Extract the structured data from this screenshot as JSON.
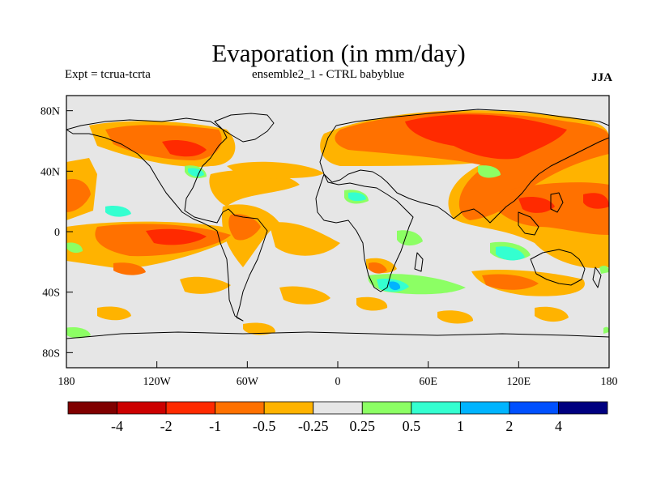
{
  "title": "Evaporation (in mm/day)",
  "left_subtitle": "Expt = tcrua-tcrta",
  "center_subtitle": "ensemble2_1 - CTRL babyblue",
  "right_subtitle": "JJA",
  "map": {
    "lon_range": [
      -180,
      180
    ],
    "lat_range": [
      -90,
      90
    ],
    "x_ticks": [
      {
        "value": -180,
        "label": "180"
      },
      {
        "value": -120,
        "label": "120W"
      },
      {
        "value": -60,
        "label": "60W"
      },
      {
        "value": 0,
        "label": "0"
      },
      {
        "value": 60,
        "label": "60E"
      },
      {
        "value": 120,
        "label": "120E"
      },
      {
        "value": 180,
        "label": "180"
      }
    ],
    "y_ticks": [
      {
        "value": 80,
        "label": "80N"
      },
      {
        "value": 40,
        "label": "40N"
      },
      {
        "value": 0,
        "label": "0"
      },
      {
        "value": -40,
        "label": "40S"
      },
      {
        "value": -80,
        "label": "80S"
      }
    ],
    "background_color": "#e6e6e6",
    "coastline_color": "#000000"
  },
  "colorbar": {
    "colors": [
      "#800000",
      "#cc0000",
      "#ff2a00",
      "#ff7100",
      "#ffb300",
      "#e6e6e6",
      "#8cff64",
      "#34ffd0",
      "#00b4ff",
      "#0050ff",
      "#000080"
    ],
    "labels": [
      "-4",
      "-2",
      "-1",
      "-0.5",
      "-0.25",
      "0.25",
      "0.5",
      "1",
      "2",
      "4"
    ]
  }
}
